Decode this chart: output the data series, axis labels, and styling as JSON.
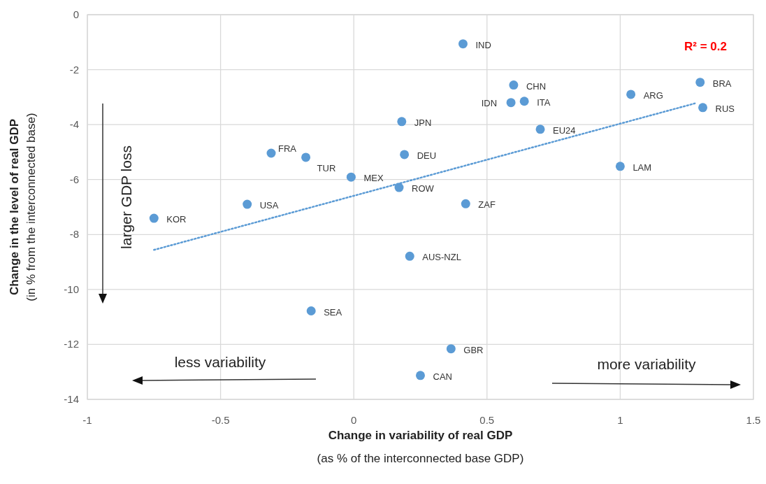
{
  "chart_data": {
    "type": "scatter",
    "xlabel": "Change in variability of real GDP\n(as % of the interconnected base GDP)",
    "ylabel": "Change in the level of real GDP\n(in % from the interconnected base)",
    "xlim": [
      -1,
      1.5
    ],
    "xticks": [
      -1,
      -0.5,
      0,
      0.5,
      1,
      1.5
    ],
    "ylim": [
      -14,
      0
    ],
    "yticks": [
      -14,
      -12,
      -10,
      -8,
      -6,
      -4,
      -2,
      0
    ],
    "grid": true,
    "series": [
      {
        "marker": "circle",
        "color": "#5b9bd5",
        "x": [
          0.41,
          0.6,
          0.59,
          0.64,
          1.04,
          1.3,
          1.31,
          0.18,
          0.7,
          0.19,
          1.0,
          0.17,
          0.42,
          -0.31,
          -0.18,
          -0.01,
          -0.4,
          -0.75,
          0.21,
          -0.16,
          0.365,
          0.25
        ],
        "values": [
          -1.06,
          -2.56,
          -3.2,
          -3.15,
          -2.9,
          -2.46,
          -3.38,
          -3.89,
          -4.17,
          -5.09,
          -5.52,
          -6.29,
          -6.88,
          -5.04,
          -5.19,
          -5.91,
          -6.9,
          -7.41,
          -8.79,
          -10.78,
          -12.16,
          -13.13
        ]
      },
      {
        "type": "line",
        "color": "#5b9bd5",
        "line_style": "dotted",
        "marker": "none",
        "x": [
          -0.75,
          1.28
        ],
        "values": [
          -8.56,
          -3.23
        ]
      }
    ],
    "annotations": [
      "R² = 0.2",
      "larger GDP loss",
      "less variability",
      "more variability",
      {
        "text": "IND",
        "x": 0.41,
        "y": -1.06
      },
      {
        "text": "CHN",
        "x": 0.6,
        "y": -2.56
      },
      {
        "text": "IDN",
        "x": 0.59,
        "y": -3.2
      },
      {
        "text": "ITA",
        "x": 0.64,
        "y": -3.15
      },
      {
        "text": "ARG",
        "x": 1.04,
        "y": -2.9
      },
      {
        "text": "BRA",
        "x": 1.3,
        "y": -2.46
      },
      {
        "text": "RUS",
        "x": 1.31,
        "y": -3.38
      },
      {
        "text": "JPN",
        "x": 0.18,
        "y": -3.89
      },
      {
        "text": "EU24",
        "x": 0.7,
        "y": -4.17
      },
      {
        "text": "DEU",
        "x": 0.19,
        "y": -5.09
      },
      {
        "text": "LAM",
        "x": 1.0,
        "y": -5.52
      },
      {
        "text": "ROW",
        "x": 0.17,
        "y": -6.29
      },
      {
        "text": "ZAF",
        "x": 0.42,
        "y": -6.88
      },
      {
        "text": "FRA",
        "x": -0.31,
        "y": -5.04
      },
      {
        "text": "TUR",
        "x": -0.18,
        "y": -5.19
      },
      {
        "text": "MEX",
        "x": -0.01,
        "y": -5.91
      },
      {
        "text": "USA",
        "x": -0.4,
        "y": -6.9
      },
      {
        "text": "KOR",
        "x": -0.75,
        "y": -7.41
      },
      {
        "text": "AUS-NZL",
        "x": 0.21,
        "y": -8.79
      },
      {
        "text": "SEA",
        "x": -0.16,
        "y": -10.78
      },
      {
        "text": "GBR",
        "x": 0.365,
        "y": -12.16
      },
      {
        "text": "CAN",
        "x": 0.25,
        "y": -13.13
      }
    ]
  }
}
